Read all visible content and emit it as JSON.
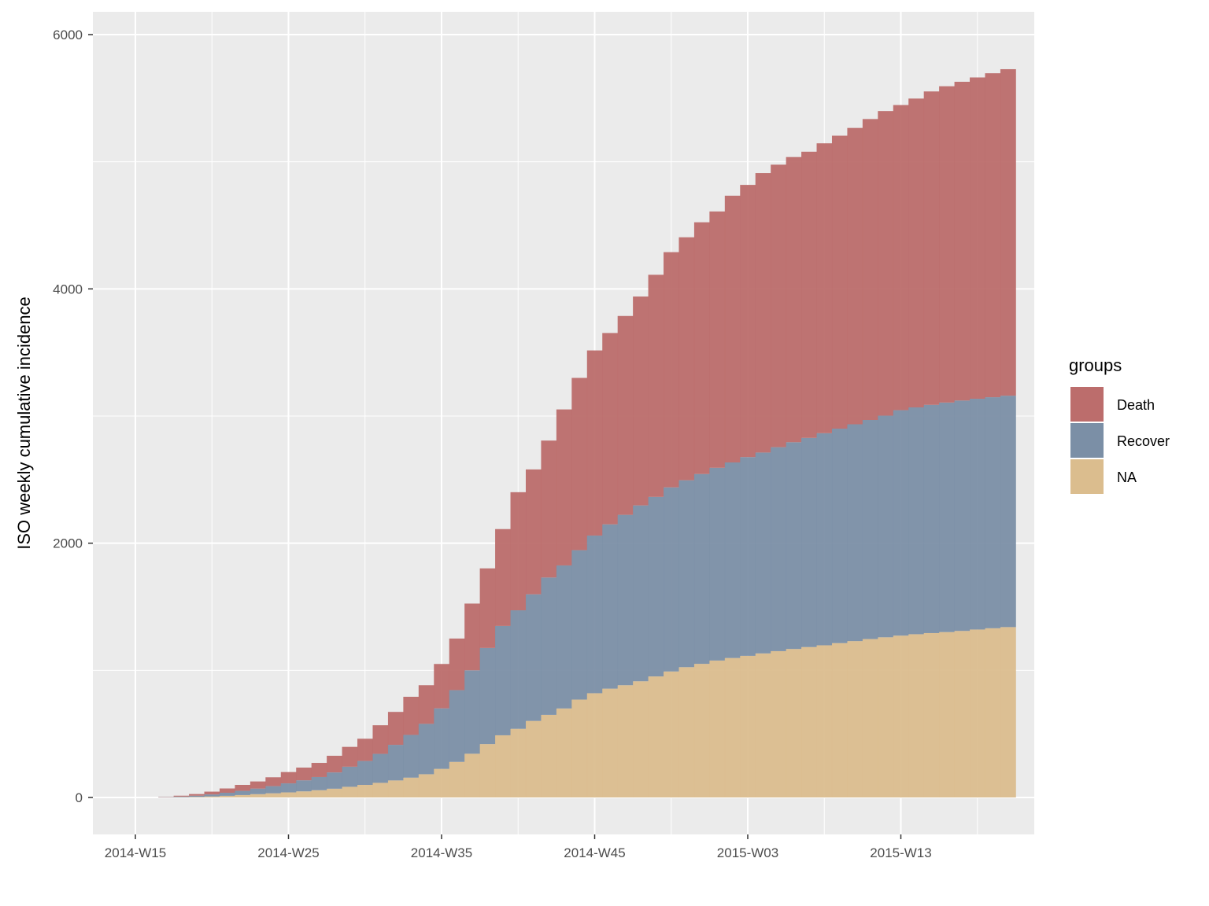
{
  "chart_data": {
    "type": "bar",
    "stacked": true,
    "cumulative": true,
    "xlabel": "",
    "ylabel": "ISO weekly cumulative incidence",
    "ylim": [
      -300,
      6100
    ],
    "y_ticks": [
      0,
      2000,
      4000,
      6000
    ],
    "x_tick_labels": [
      "2014-W15",
      "2014-W25",
      "2014-W35",
      "2014-W45",
      "2015-W03",
      "2015-W13"
    ],
    "grid": true,
    "legend": {
      "title": "groups",
      "position": "right"
    },
    "categories": [
      "2014-W17",
      "2014-W18",
      "2014-W19",
      "2014-W20",
      "2014-W21",
      "2014-W22",
      "2014-W23",
      "2014-W24",
      "2014-W25",
      "2014-W26",
      "2014-W27",
      "2014-W28",
      "2014-W29",
      "2014-W30",
      "2014-W31",
      "2014-W32",
      "2014-W33",
      "2014-W34",
      "2014-W35",
      "2014-W36",
      "2014-W37",
      "2014-W38",
      "2014-W39",
      "2014-W40",
      "2014-W41",
      "2014-W42",
      "2014-W43",
      "2014-W44",
      "2014-W45",
      "2014-W46",
      "2014-W47",
      "2014-W48",
      "2014-W49",
      "2014-W50",
      "2014-W51",
      "2014-W52",
      "2015-W01",
      "2015-W02",
      "2015-W03",
      "2015-W04",
      "2015-W05",
      "2015-W06",
      "2015-W07",
      "2015-W08",
      "2015-W09",
      "2015-W10",
      "2015-W11",
      "2015-W12",
      "2015-W13",
      "2015-W14",
      "2015-W15",
      "2015-W16",
      "2015-W17",
      "2015-W18",
      "2015-W19",
      "2015-W20"
    ],
    "series": [
      {
        "name": "NA",
        "color": "#dbbd8e",
        "values": [
          1,
          2,
          4,
          8,
          13,
          19,
          26,
          33,
          40,
          48,
          57,
          69,
          84,
          99,
          115,
          134,
          156,
          183,
          225,
          280,
          344,
          420,
          489,
          540,
          602,
          650,
          700,
          770,
          820,
          856,
          883,
          914,
          952,
          991,
          1025,
          1051,
          1077,
          1097,
          1114,
          1133,
          1151,
          1168,
          1183,
          1197,
          1214,
          1230,
          1246,
          1260,
          1273,
          1284,
          1293,
          1301,
          1310,
          1321,
          1331,
          1340
        ]
      },
      {
        "name": "Recover",
        "color": "#7b8fa6",
        "values": [
          2,
          5,
          10,
          16,
          24,
          33,
          44,
          56,
          71,
          87,
          104,
          128,
          158,
          188,
          228,
          280,
          336,
          396,
          476,
          564,
          656,
          756,
          860,
          932,
          996,
          1080,
          1125,
          1175,
          1240,
          1292,
          1340,
          1383,
          1412,
          1448,
          1470,
          1493,
          1516,
          1538,
          1563,
          1580,
          1604,
          1626,
          1645,
          1668,
          1687,
          1705,
          1723,
          1743,
          1773,
          1784,
          1795,
          1805,
          1812,
          1815,
          1817,
          1820
        ]
      },
      {
        "name": "Death",
        "color": "#bc6d6c",
        "values": [
          2,
          7,
          13,
          22,
          34,
          47,
          56,
          70,
          89,
          100,
          111,
          131,
          156,
          175,
          225,
          259,
          300,
          304,
          349,
          406,
          525,
          626,
          762,
          929,
          982,
          1077,
          1227,
          1355,
          1456,
          1505,
          1564,
          1643,
          1747,
          1850,
          1911,
          1980,
          2016,
          2098,
          2141,
          2198,
          2222,
          2243,
          2251,
          2280,
          2304,
          2331,
          2367,
          2396,
          2400,
          2429,
          2465,
          2488,
          2507,
          2527,
          2548,
          2568
        ]
      }
    ]
  }
}
